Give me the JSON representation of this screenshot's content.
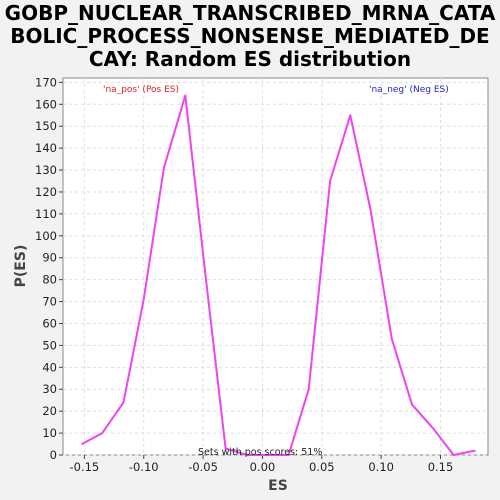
{
  "title_lines": [
    "GOBP_NUCLEAR_TRANSCRIBED_MRNA_CATA",
    "BOLIC_PROCESS_NONSENSE_MEDIATED_DE",
    "CAY: Random ES distribution"
  ],
  "colors": {
    "line": "#ee44ee",
    "pos": "#dd2222",
    "neg": "#2222cc",
    "grid": "#dddddd"
  },
  "chart_data": {
    "type": "line",
    "title": "GOBP_NUCLEAR_TRANSCRIBED_MRNA_CATABOLIC_PROCESS_NONSENSE_MEDIATED_DECAY: Random ES distribution",
    "xlabel": "ES",
    "ylabel": "P(ES)",
    "xlim": [
      -0.168,
      0.19
    ],
    "ylim": [
      0,
      172
    ],
    "x_ticks": [
      -0.15,
      -0.1,
      -0.05,
      0.0,
      0.05,
      0.1,
      0.15
    ],
    "x_tick_labels": [
      "-0.15",
      "-0.10",
      "-0.05",
      "0.00",
      "0.05",
      "0.10",
      "0.15"
    ],
    "y_ticks": [
      0,
      10,
      20,
      30,
      40,
      50,
      60,
      70,
      80,
      90,
      100,
      110,
      120,
      130,
      140,
      150,
      160,
      170
    ],
    "grid": true,
    "series": [
      {
        "x": [
          -0.152,
          -0.135,
          -0.117,
          -0.1,
          -0.083,
          -0.065,
          -0.048,
          -0.031,
          -0.013,
          0.004,
          0.022,
          0.039,
          0.057,
          0.074,
          0.091,
          0.109,
          0.126,
          0.144,
          0.161,
          0.179
        ],
        "y": [
          5,
          10,
          24,
          71,
          131,
          164,
          82,
          3,
          0,
          0,
          0,
          30,
          125,
          155,
          112,
          53,
          23,
          12,
          0,
          2
        ]
      }
    ],
    "annotations": {
      "pos_label": "'na_pos' (Pos ES)",
      "neg_label": "'na_neg' (Neg ES)",
      "footer": "Sets with pos scores: 51%"
    }
  }
}
